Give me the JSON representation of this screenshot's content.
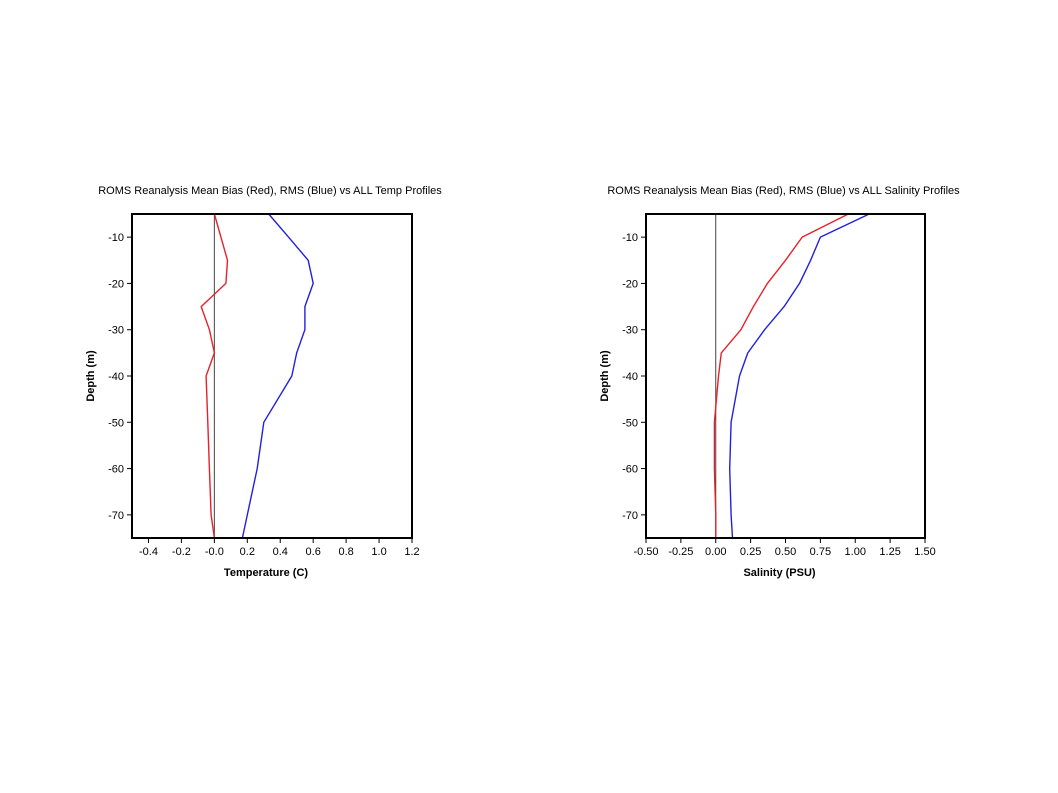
{
  "chart_data": [
    {
      "type": "line",
      "title": "ROMS Reanalysis Mean Bias (Red), RMS (Blue) vs ALL Temp Profiles",
      "xlabel": "Temperature (C)",
      "ylabel": "Depth (m)",
      "xlim": [
        -0.5,
        1.2
      ],
      "ylim": [
        -75,
        -5
      ],
      "xticks": [
        -0.4,
        -0.2,
        0,
        0.2,
        0.4,
        0.6,
        0.8,
        1.0,
        1.2
      ],
      "xtick_labels": [
        "-0.4",
        "-0.2",
        "-0.0",
        "0.2",
        "0.4",
        "0.6",
        "0.8",
        "1.0",
        "1.2"
      ],
      "yticks": [
        -10,
        -20,
        -30,
        -40,
        -50,
        -60,
        -70
      ],
      "ytick_labels": [
        "-10",
        "-20",
        "-30",
        "-40",
        "-50",
        "-60",
        "-70"
      ],
      "reference_line_x": 0,
      "series": [
        {
          "color": "#e8202a",
          "points": [
            [
              0.0,
              -5
            ],
            [
              0.04,
              -10
            ],
            [
              0.08,
              -15
            ],
            [
              0.07,
              -20
            ],
            [
              -0.08,
              -25
            ],
            [
              -0.03,
              -30
            ],
            [
              0.0,
              -35
            ],
            [
              -0.05,
              -40
            ],
            [
              -0.04,
              -50
            ],
            [
              -0.03,
              -60
            ],
            [
              -0.02,
              -70
            ],
            [
              0.0,
              -75
            ]
          ]
        },
        {
          "color": "#2020e0",
          "points": [
            [
              0.33,
              -5
            ],
            [
              0.45,
              -10
            ],
            [
              0.57,
              -15
            ],
            [
              0.6,
              -20
            ],
            [
              0.55,
              -25
            ],
            [
              0.55,
              -30
            ],
            [
              0.5,
              -35
            ],
            [
              0.47,
              -40
            ],
            [
              0.3,
              -50
            ],
            [
              0.26,
              -60
            ],
            [
              0.2,
              -70
            ],
            [
              0.17,
              -75
            ]
          ]
        }
      ]
    },
    {
      "type": "line",
      "title": "ROMS Reanalysis Mean Bias (Red), RMS (Blue) vs ALL Salinity Profiles",
      "xlabel": "Salinity (PSU)",
      "ylabel": "Depth (m)",
      "xlim": [
        -0.5,
        1.5
      ],
      "ylim": [
        -75,
        -5
      ],
      "xticks": [
        -0.5,
        -0.25,
        0,
        0.25,
        0.5,
        0.75,
        1.0,
        1.25,
        1.5
      ],
      "xtick_labels": [
        "-0.50",
        "-0.25",
        "0.00",
        "0.25",
        "0.50",
        "0.75",
        "1.00",
        "1.25",
        "1.50"
      ],
      "yticks": [
        -10,
        -20,
        -30,
        -40,
        -50,
        -60,
        -70
      ],
      "ytick_labels": [
        "-10",
        "-20",
        "-30",
        "-40",
        "-50",
        "-60",
        "-70"
      ],
      "reference_line_x": 0,
      "series": [
        {
          "color": "#e8202a",
          "points": [
            [
              0.95,
              -5
            ],
            [
              0.62,
              -10
            ],
            [
              0.5,
              -15
            ],
            [
              0.37,
              -20
            ],
            [
              0.27,
              -25
            ],
            [
              0.18,
              -30
            ],
            [
              0.04,
              -35
            ],
            [
              0.02,
              -40
            ],
            [
              -0.01,
              -50
            ],
            [
              -0.01,
              -60
            ],
            [
              0.0,
              -70
            ],
            [
              0.0,
              -75
            ]
          ]
        },
        {
          "color": "#2020e0",
          "points": [
            [
              1.1,
              -5
            ],
            [
              0.75,
              -10
            ],
            [
              0.68,
              -15
            ],
            [
              0.6,
              -20
            ],
            [
              0.49,
              -25
            ],
            [
              0.35,
              -30
            ],
            [
              0.23,
              -35
            ],
            [
              0.17,
              -40
            ],
            [
              0.11,
              -50
            ],
            [
              0.1,
              -60
            ],
            [
              0.11,
              -70
            ],
            [
              0.12,
              -75
            ]
          ]
        }
      ]
    }
  ]
}
